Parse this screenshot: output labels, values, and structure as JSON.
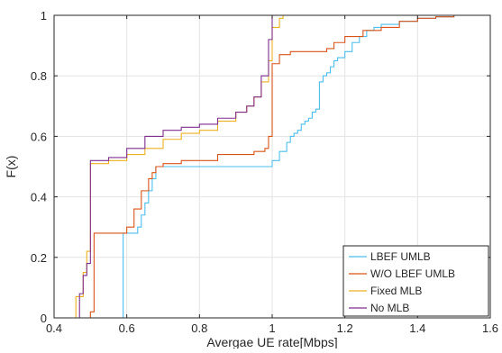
{
  "chart_data": {
    "type": "line",
    "title": "",
    "xlabel": "Avergae UE rate[Mbps]",
    "ylabel": "F(x)",
    "xlim": [
      0.4,
      1.6
    ],
    "ylim": [
      0,
      1
    ],
    "x_ticks": [
      "0.4",
      "0.6",
      "0.8",
      "1",
      "1.2",
      "1.4",
      "1.6"
    ],
    "y_ticks": [
      "0",
      "0.2",
      "0.4",
      "0.6",
      "0.8",
      "1"
    ],
    "grid": true,
    "legend_position": "bottom-right",
    "series": [
      {
        "name": "LBEF UMLB",
        "color": "#4DBEEE",
        "x": [
          0.585,
          0.585,
          0.59,
          0.59,
          0.63,
          0.64,
          0.65,
          0.66,
          0.67,
          0.67,
          0.68,
          0.68,
          0.7,
          0.8,
          0.9,
          0.98,
          1.0,
          1.02,
          1.04,
          1.05,
          1.06,
          1.07,
          1.08,
          1.09,
          1.1,
          1.11,
          1.12,
          1.13,
          1.13,
          1.14,
          1.15,
          1.16,
          1.17,
          1.18,
          1.19,
          1.2,
          1.22,
          1.24,
          1.26,
          1.28,
          1.3,
          1.35,
          1.4,
          1.45,
          1.5,
          1.55
        ],
        "y": [
          0,
          0.0,
          0.28,
          0.28,
          0.3,
          0.34,
          0.38,
          0.42,
          0.44,
          0.46,
          0.47,
          0.5,
          0.5,
          0.5,
          0.5,
          0.5,
          0.52,
          0.55,
          0.58,
          0.6,
          0.61,
          0.62,
          0.64,
          0.65,
          0.66,
          0.68,
          0.69,
          0.7,
          0.78,
          0.8,
          0.81,
          0.83,
          0.85,
          0.86,
          0.86,
          0.88,
          0.91,
          0.93,
          0.95,
          0.96,
          0.97,
          0.98,
          0.99,
          0.995,
          1.0,
          1.0
        ]
      },
      {
        "name": "W/O LBEF UMLB",
        "color": "#D95319",
        "x": [
          0.49,
          0.5,
          0.51,
          0.52,
          0.58,
          0.6,
          0.62,
          0.64,
          0.66,
          0.67,
          0.68,
          0.7,
          0.75,
          0.85,
          0.95,
          0.98,
          0.99,
          1.0,
          1.0,
          1.02,
          1.05,
          1.1,
          1.15,
          1.17,
          1.2,
          1.25,
          1.3,
          1.35,
          1.4,
          1.45,
          1.5,
          1.55
        ],
        "y": [
          0,
          0.02,
          0.28,
          0.28,
          0.28,
          0.3,
          0.36,
          0.42,
          0.46,
          0.48,
          0.5,
          0.51,
          0.52,
          0.54,
          0.55,
          0.56,
          0.6,
          0.72,
          0.84,
          0.87,
          0.88,
          0.88,
          0.89,
          0.91,
          0.93,
          0.95,
          0.96,
          0.98,
          0.99,
          0.995,
          1.0,
          1.0
        ]
      },
      {
        "name": "Fixed MLB",
        "color": "#EDB120",
        "x": [
          0.44,
          0.46,
          0.48,
          0.49,
          0.5,
          0.5,
          0.52,
          0.55,
          0.6,
          0.65,
          0.7,
          0.75,
          0.8,
          0.85,
          0.9,
          0.93,
          0.95,
          0.97,
          0.99,
          1.0,
          1.02,
          1.03
        ],
        "y": [
          0,
          0.07,
          0.15,
          0.22,
          0.3,
          0.51,
          0.51,
          0.52,
          0.54,
          0.56,
          0.59,
          0.61,
          0.62,
          0.65,
          0.68,
          0.7,
          0.73,
          0.78,
          0.85,
          0.96,
          0.99,
          1.0
        ]
      },
      {
        "name": "No MLB",
        "color": "#7E2F8E",
        "x": [
          0.45,
          0.47,
          0.48,
          0.49,
          0.5,
          0.5,
          0.55,
          0.6,
          0.65,
          0.7,
          0.75,
          0.8,
          0.85,
          0.9,
          0.93,
          0.95,
          0.97,
          0.99,
          1.0,
          1.0
        ],
        "y": [
          0,
          0.08,
          0.14,
          0.18,
          0.22,
          0.52,
          0.53,
          0.56,
          0.6,
          0.62,
          0.63,
          0.64,
          0.66,
          0.68,
          0.7,
          0.73,
          0.8,
          0.92,
          0.98,
          1.0
        ]
      }
    ]
  }
}
